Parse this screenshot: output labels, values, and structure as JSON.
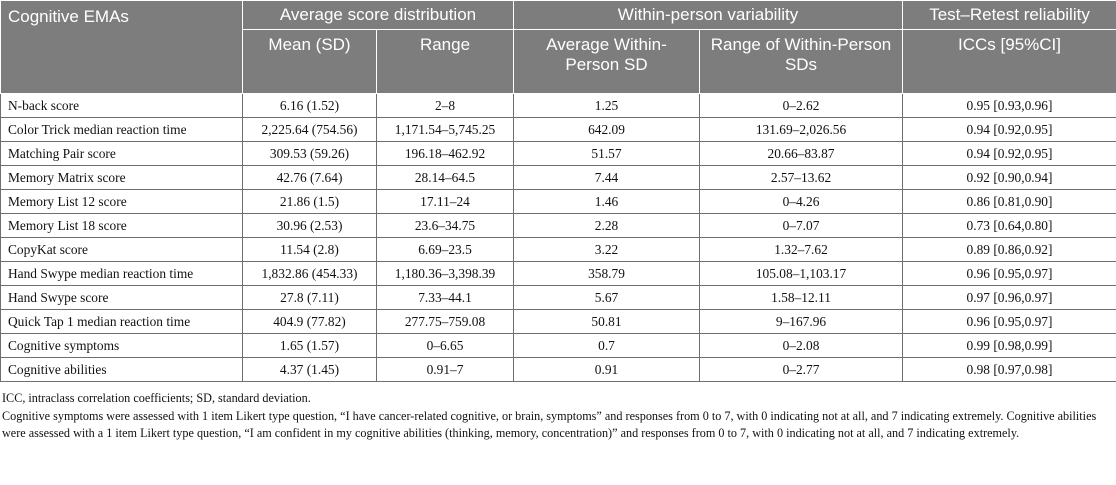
{
  "table": {
    "header": {
      "col_cognitive": "Cognitive EMAs",
      "group_average": "Average score distribution",
      "group_variability": "Within-person variability",
      "group_reliability": "Test–Retest reliability",
      "sub_mean": "Mean (SD)",
      "sub_range": "Range",
      "sub_avg_wp_sd": "Average Within-Person SD",
      "sub_range_wp_sd": "Range of Within-Person SDs",
      "sub_icc": "ICCs [95%CI]"
    },
    "rows": [
      {
        "name": "N-back score",
        "mean_sd": "6.16 (1.52)",
        "range": "2–8",
        "avg_wp_sd": "1.25",
        "range_wp_sd": "0–2.62",
        "icc": "0.95 [0.93,0.96]"
      },
      {
        "name": "Color Trick median reaction time",
        "mean_sd": "2,225.64 (754.56)",
        "range": "1,171.54–5,745.25",
        "avg_wp_sd": "642.09",
        "range_wp_sd": "131.69–2,026.56",
        "icc": "0.94 [0.92,0.95]"
      },
      {
        "name": "Matching Pair score",
        "mean_sd": "309.53 (59.26)",
        "range": "196.18–462.92",
        "avg_wp_sd": "51.57",
        "range_wp_sd": "20.66–83.87",
        "icc": "0.94 [0.92,0.95]"
      },
      {
        "name": "Memory Matrix score",
        "mean_sd": "42.76 (7.64)",
        "range": "28.14–64.5",
        "avg_wp_sd": "7.44",
        "range_wp_sd": "2.57–13.62",
        "icc": "0.92 [0.90,0.94]"
      },
      {
        "name": "Memory List 12 score",
        "mean_sd": "21.86 (1.5)",
        "range": "17.11–24",
        "avg_wp_sd": "1.46",
        "range_wp_sd": "0–4.26",
        "icc": "0.86 [0.81,0.90]"
      },
      {
        "name": "Memory List 18 score",
        "mean_sd": "30.96 (2.53)",
        "range": "23.6–34.75",
        "avg_wp_sd": "2.28",
        "range_wp_sd": "0–7.07",
        "icc": "0.73 [0.64,0.80]"
      },
      {
        "name": "CopyKat score",
        "mean_sd": "11.54 (2.8)",
        "range": "6.69–23.5",
        "avg_wp_sd": "3.22",
        "range_wp_sd": "1.32–7.62",
        "icc": "0.89 [0.86,0.92]"
      },
      {
        "name": "Hand Swype median reaction time",
        "mean_sd": "1,832.86 (454.33)",
        "range": "1,180.36–3,398.39",
        "avg_wp_sd": "358.79",
        "range_wp_sd": "105.08–1,103.17",
        "icc": "0.96 [0.95,0.97]"
      },
      {
        "name": "Hand Swype score",
        "mean_sd": "27.8 (7.11)",
        "range": "7.33–44.1",
        "avg_wp_sd": "5.67",
        "range_wp_sd": "1.58–12.11",
        "icc": "0.97 [0.96,0.97]"
      },
      {
        "name": "Quick Tap 1 median reaction time",
        "mean_sd": "404.9 (77.82)",
        "range": "277.75–759.08",
        "avg_wp_sd": "50.81",
        "range_wp_sd": "9–167.96",
        "icc": "0.96 [0.95,0.97]"
      },
      {
        "name": "Cognitive symptoms",
        "mean_sd": "1.65 (1.57)",
        "range": "0–6.65",
        "avg_wp_sd": "0.7",
        "range_wp_sd": "0–2.08",
        "icc": "0.99 [0.98,0.99]"
      },
      {
        "name": "Cognitive abilities",
        "mean_sd": "4.37 (1.45)",
        "range": "0.91–7",
        "avg_wp_sd": "0.91",
        "range_wp_sd": "0–2.77",
        "icc": "0.98 [0.97,0.98]"
      }
    ]
  },
  "footnotes": {
    "abbreviations": "ICC, intraclass correlation coefficients; SD, standard deviation.",
    "note": "Cognitive symptoms were assessed with 1 item Likert type question, “I have cancer-related cognitive, or brain, symptoms” and responses from 0 to 7, with 0 indicating not at all, and 7 indicating extremely. Cognitive abilities were assessed with a 1 item Likert type question, “I am confident in my cognitive abilities (thinking, memory, concentration)” and responses from 0 to 7, with 0 indicating not at all, and 7 indicating extremely."
  }
}
